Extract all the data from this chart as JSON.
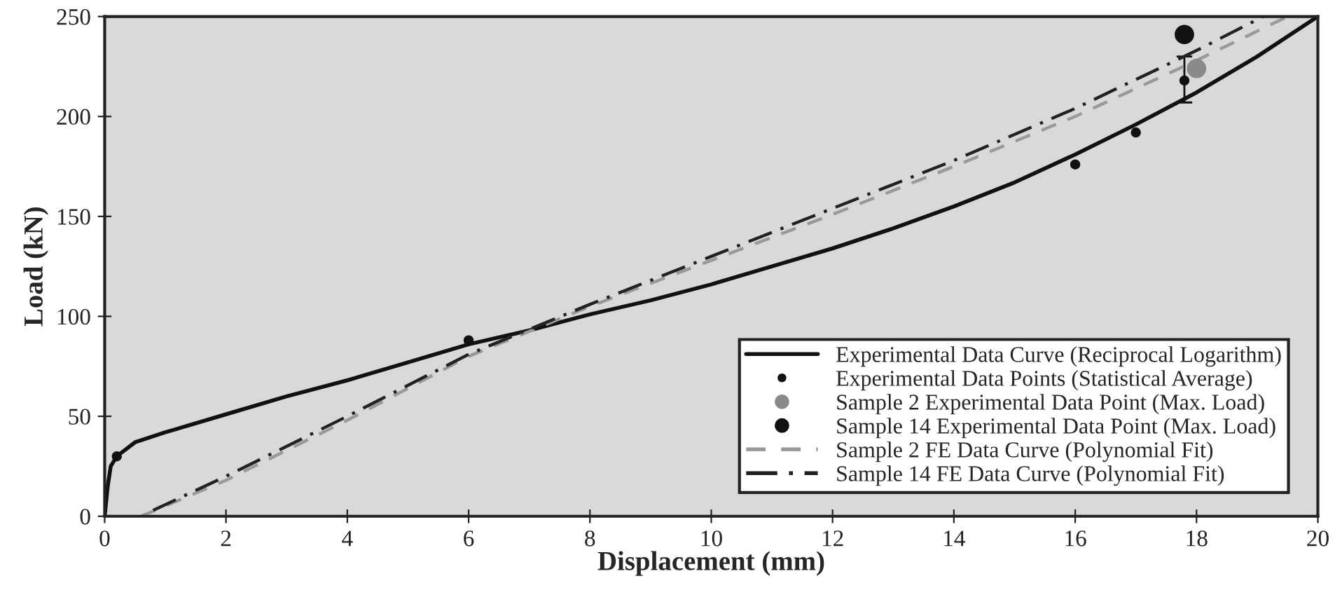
{
  "chart_data": {
    "type": "line",
    "xlabel": "Displacement (mm)",
    "ylabel": "Load (kN)",
    "xlim": [
      0,
      20
    ],
    "ylim": [
      0,
      250
    ],
    "xticks": [
      0,
      2,
      4,
      6,
      8,
      10,
      12,
      14,
      16,
      18,
      20
    ],
    "yticks": [
      0,
      50,
      100,
      150,
      200,
      250
    ],
    "grid": false,
    "legend": "bottom right",
    "series": [
      {
        "name": "Experimental Data Curve (Reciprocal Logarithm)",
        "color": "#111111",
        "line_style": "solid",
        "marker": "none",
        "x": [
          0,
          0.05,
          0.1,
          0.2,
          0.5,
          1,
          2,
          3,
          4,
          5,
          6,
          7,
          8,
          9,
          10,
          11,
          12,
          13,
          14,
          15,
          16,
          17,
          18,
          19,
          20
        ],
        "values": [
          0,
          15,
          25,
          30,
          37,
          42,
          51,
          60,
          68,
          77,
          86,
          93,
          101,
          108,
          116,
          125,
          134,
          144,
          155,
          167,
          181,
          196,
          212,
          230,
          250
        ]
      },
      {
        "name": "Experimental Data Points (Statistical Average)",
        "type": "scatter",
        "color": "#111111",
        "marker": "circle",
        "x": [
          0.2,
          6,
          16,
          17,
          17.8
        ],
        "values": [
          30,
          88,
          176,
          192,
          218
        ],
        "errors": [
          null,
          null,
          null,
          null,
          [
            207,
            230
          ]
        ]
      },
      {
        "name": "Sample 2 Experimental Data Point (Max. Load)",
        "type": "scatter",
        "color": "#8a8a8a",
        "marker": "circle",
        "x": [
          18.0
        ],
        "values": [
          224
        ]
      },
      {
        "name": "Sample 14 Experimental Data Point (Max. Load)",
        "type": "scatter",
        "color": "#111111",
        "marker": "circle",
        "x": [
          17.8
        ],
        "values": [
          241
        ]
      },
      {
        "name": "Sample 2 FE Data Curve (Polynomial Fit)",
        "color": "#999999",
        "line_style": "dashed",
        "marker": "none",
        "x": [
          0.6,
          2,
          4,
          6,
          8,
          10,
          12,
          14,
          16,
          18,
          19.5
        ],
        "values": [
          0,
          18,
          48,
          80,
          105,
          128,
          151,
          175,
          200,
          228,
          250
        ]
      },
      {
        "name": "Sample 14 FE Data Curve (Polynomial Fit)",
        "color": "#222222",
        "line_style": "dashdot",
        "marker": "none",
        "x": [
          0.8,
          2,
          4,
          6,
          8,
          10,
          12,
          14,
          16,
          18,
          19.1
        ],
        "values": [
          3,
          20,
          50,
          81,
          106,
          130,
          154,
          178,
          204,
          233,
          250
        ]
      }
    ]
  }
}
